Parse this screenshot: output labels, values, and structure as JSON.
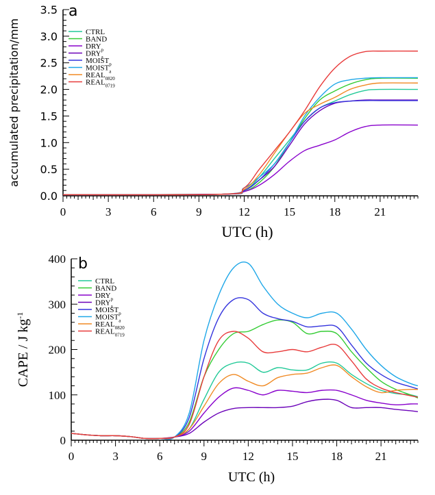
{
  "chart_data": [
    {
      "type": "line",
      "panel_label": "a",
      "xlabel": "UTC (h)",
      "ylabel": "accumulated precipitation/mm",
      "xlim": [
        0,
        23.5
      ],
      "ylim": [
        0,
        3.5
      ],
      "xticks": [
        0,
        3,
        6,
        9,
        12,
        15,
        18,
        21
      ],
      "yticks": [
        "0.0",
        "0.5",
        "1.0",
        "1.5",
        "2.0",
        "2.5",
        "3.0",
        "3.5"
      ],
      "legend_position": "top-left",
      "series": [
        {
          "name": "CTRL",
          "sub": "",
          "color": "#20c997",
          "x": [
            0,
            10.5,
            12,
            13,
            14,
            15,
            16,
            17,
            18,
            19,
            20,
            21,
            23.5
          ],
          "y": [
            0.02,
            0.03,
            0.1,
            0.35,
            0.7,
            1.05,
            1.4,
            1.65,
            1.78,
            1.9,
            1.98,
            2.0,
            2.0
          ]
        },
        {
          "name": "BAND",
          "sub": "",
          "color": "#33cc33",
          "x": [
            0,
            10.5,
            12,
            13,
            14,
            15,
            16,
            17,
            18,
            19,
            20,
            21,
            23.5
          ],
          "y": [
            0.02,
            0.03,
            0.08,
            0.25,
            0.55,
            1.0,
            1.45,
            1.8,
            1.97,
            2.1,
            2.18,
            2.21,
            2.21
          ]
        },
        {
          "name": "DRY",
          "sub": "p",
          "color": "#8800cc",
          "x": [
            0,
            10.5,
            12,
            13,
            14,
            15,
            16,
            17,
            18,
            19,
            20,
            21,
            23.5
          ],
          "y": [
            0.02,
            0.03,
            0.08,
            0.2,
            0.4,
            0.65,
            0.85,
            0.95,
            1.05,
            1.2,
            1.3,
            1.33,
            1.33
          ]
        },
        {
          "name": "DRY",
          "sub": "a",
          "color": "#6a00b8",
          "x": [
            0,
            10.5,
            12,
            13,
            14,
            15,
            16,
            17,
            18,
            19,
            20,
            21,
            23.5
          ],
          "y": [
            0.02,
            0.03,
            0.1,
            0.3,
            0.55,
            0.95,
            1.35,
            1.6,
            1.74,
            1.78,
            1.8,
            1.8,
            1.8
          ]
        },
        {
          "name": "MOIST",
          "sub": "p",
          "color": "#3333dd",
          "x": [
            0,
            10.5,
            12,
            13,
            14,
            15,
            16,
            17,
            18,
            19,
            20,
            21,
            23.5
          ],
          "y": [
            0.02,
            0.03,
            0.1,
            0.3,
            0.6,
            1.0,
            1.4,
            1.65,
            1.75,
            1.78,
            1.79,
            1.79,
            1.79
          ]
        },
        {
          "name": "MOIST",
          "sub": "a",
          "color": "#1ea7e8",
          "x": [
            0,
            10.5,
            12,
            13,
            14,
            15,
            16,
            17,
            18,
            19,
            20,
            21,
            23.5
          ],
          "y": [
            0.02,
            0.03,
            0.15,
            0.35,
            0.6,
            1.0,
            1.5,
            1.85,
            2.1,
            2.18,
            2.21,
            2.22,
            2.22
          ]
        },
        {
          "name": "REAL",
          "sub": "0820",
          "color": "#f08a24",
          "x": [
            0,
            10.5,
            12,
            13,
            14,
            15,
            16,
            17,
            18,
            19,
            20,
            21,
            23.5
          ],
          "y": [
            0.02,
            0.03,
            0.12,
            0.4,
            0.8,
            1.2,
            1.55,
            1.72,
            1.85,
            2.0,
            2.08,
            2.12,
            2.12
          ]
        },
        {
          "name": "REAL",
          "sub": "0719",
          "color": "#e83a3a",
          "x": [
            0,
            10.5,
            12,
            13,
            14,
            15,
            16,
            17,
            18,
            19,
            20,
            21,
            23.5
          ],
          "y": [
            0.02,
            0.03,
            0.15,
            0.5,
            0.85,
            1.2,
            1.6,
            2.05,
            2.4,
            2.62,
            2.71,
            2.72,
            2.72
          ]
        }
      ]
    },
    {
      "type": "line",
      "panel_label": "b",
      "xlabel": "UTC (h)",
      "ylabel": "CAPE / J kg",
      "ylabel_sup": "-1",
      "xlim": [
        0,
        23.5
      ],
      "ylim": [
        0,
        400
      ],
      "xticks": [
        0,
        3,
        6,
        9,
        12,
        15,
        18,
        21
      ],
      "yticks": [
        "0",
        "100",
        "200",
        "300",
        "400"
      ],
      "legend_position": "top-left",
      "series": [
        {
          "name": "CTRL",
          "sub": "",
          "color": "#20c997",
          "x": [
            0,
            1,
            2,
            3,
            4,
            5,
            6,
            7,
            8,
            9,
            10,
            11,
            12,
            13,
            14,
            15,
            16,
            17,
            18,
            19,
            20,
            21,
            22,
            23,
            23.5
          ],
          "y": [
            15,
            12,
            10,
            10,
            8,
            4,
            4,
            7,
            25,
            90,
            150,
            170,
            170,
            150,
            160,
            155,
            155,
            170,
            170,
            145,
            125,
            110,
            103,
            100,
            96
          ]
        },
        {
          "name": "BAND",
          "sub": "",
          "color": "#33cc33",
          "x": [
            0,
            1,
            2,
            3,
            4,
            5,
            6,
            7,
            8,
            9,
            10,
            11,
            12,
            13,
            14,
            15,
            16,
            17,
            18,
            19,
            20,
            21,
            22,
            23,
            23.5
          ],
          "y": [
            15,
            12,
            10,
            10,
            8,
            4,
            4,
            7,
            40,
            140,
            200,
            235,
            240,
            255,
            265,
            260,
            235,
            240,
            235,
            195,
            160,
            130,
            112,
            100,
            93
          ]
        },
        {
          "name": "DRY",
          "sub": "p",
          "color": "#8800cc",
          "x": [
            0,
            1,
            2,
            3,
            4,
            5,
            6,
            7,
            8,
            9,
            10,
            11,
            12,
            13,
            14,
            15,
            16,
            17,
            18,
            19,
            20,
            21,
            22,
            23,
            23.5
          ],
          "y": [
            15,
            12,
            10,
            10,
            8,
            4,
            4,
            7,
            20,
            60,
            95,
            115,
            110,
            100,
            110,
            108,
            105,
            110,
            110,
            100,
            88,
            82,
            78,
            80,
            80
          ]
        },
        {
          "name": "DRY",
          "sub": "a",
          "color": "#6a00b8",
          "x": [
            0,
            1,
            2,
            3,
            4,
            5,
            6,
            7,
            8,
            9,
            10,
            11,
            12,
            13,
            14,
            15,
            16,
            17,
            18,
            19,
            20,
            21,
            22,
            23,
            23.5
          ],
          "y": [
            15,
            12,
            10,
            10,
            8,
            4,
            4,
            7,
            15,
            40,
            60,
            70,
            72,
            72,
            72,
            75,
            85,
            90,
            88,
            72,
            72,
            72,
            68,
            65,
            63
          ]
        },
        {
          "name": "MOIST",
          "sub": "p",
          "color": "#3333dd",
          "x": [
            0,
            1,
            2,
            3,
            4,
            5,
            6,
            7,
            8,
            9,
            10,
            11,
            12,
            13,
            14,
            15,
            16,
            17,
            18,
            19,
            20,
            21,
            22,
            23,
            23.5
          ],
          "y": [
            15,
            12,
            10,
            10,
            8,
            4,
            4,
            7,
            50,
            180,
            270,
            310,
            310,
            280,
            268,
            262,
            250,
            252,
            250,
            210,
            170,
            145,
            128,
            118,
            113
          ]
        },
        {
          "name": "MOIST",
          "sub": "a",
          "color": "#1ea7e8",
          "x": [
            0,
            1,
            2,
            3,
            4,
            5,
            6,
            7,
            8,
            9,
            10,
            11,
            12,
            13,
            14,
            15,
            16,
            17,
            18,
            19,
            20,
            21,
            22,
            23,
            23.5
          ],
          "y": [
            15,
            12,
            10,
            10,
            8,
            4,
            4,
            7,
            60,
            220,
            320,
            380,
            390,
            340,
            300,
            280,
            270,
            280,
            280,
            245,
            200,
            165,
            140,
            125,
            120
          ]
        },
        {
          "name": "REAL",
          "sub": "0820",
          "color": "#f08a24",
          "x": [
            0,
            1,
            2,
            3,
            4,
            5,
            6,
            7,
            8,
            9,
            10,
            11,
            12,
            13,
            14,
            15,
            16,
            17,
            18,
            19,
            20,
            21,
            22,
            23,
            23.5
          ],
          "y": [
            15,
            12,
            10,
            10,
            8,
            4,
            4,
            7,
            25,
            75,
            125,
            145,
            130,
            120,
            138,
            145,
            148,
            160,
            165,
            140,
            118,
            105,
            110,
            112,
            112
          ]
        },
        {
          "name": "REAL",
          "sub": "0719",
          "color": "#e83a3a",
          "x": [
            0,
            1,
            2,
            3,
            4,
            5,
            6,
            7,
            8,
            9,
            10,
            11,
            12,
            13,
            14,
            15,
            16,
            17,
            18,
            19,
            20,
            21,
            22,
            23,
            23.5
          ],
          "y": [
            15,
            12,
            10,
            10,
            8,
            4,
            4,
            7,
            35,
            140,
            220,
            240,
            225,
            195,
            195,
            200,
            195,
            205,
            210,
            175,
            135,
            115,
            105,
            98,
            95
          ]
        }
      ]
    }
  ]
}
